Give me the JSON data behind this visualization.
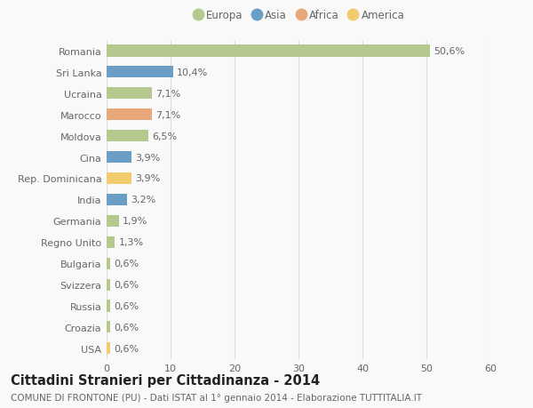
{
  "countries": [
    "Romania",
    "Sri Lanka",
    "Ucraina",
    "Marocco",
    "Moldova",
    "Cina",
    "Rep. Dominicana",
    "India",
    "Germania",
    "Regno Unito",
    "Bulgaria",
    "Svizzera",
    "Russia",
    "Croazia",
    "USA"
  ],
  "values": [
    50.6,
    10.4,
    7.1,
    7.1,
    6.5,
    3.9,
    3.9,
    3.2,
    1.9,
    1.3,
    0.6,
    0.6,
    0.6,
    0.6,
    0.6
  ],
  "labels": [
    "50,6%",
    "10,4%",
    "7,1%",
    "7,1%",
    "6,5%",
    "3,9%",
    "3,9%",
    "3,2%",
    "1,9%",
    "1,3%",
    "0,6%",
    "0,6%",
    "0,6%",
    "0,6%",
    "0,6%"
  ],
  "continents": [
    "Europa",
    "Asia",
    "Europa",
    "Africa",
    "Europa",
    "Asia",
    "America",
    "Asia",
    "Europa",
    "Europa",
    "Europa",
    "Europa",
    "Europa",
    "Europa",
    "America"
  ],
  "continent_colors": {
    "Europa": "#b5c98e",
    "Asia": "#6b9ec4",
    "Africa": "#e8a87c",
    "America": "#f0cc6e"
  },
  "legend_order": [
    "Europa",
    "Asia",
    "Africa",
    "America"
  ],
  "title": "Cittadini Stranieri per Cittadinanza - 2014",
  "subtitle": "COMUNE DI FRONTONE (PU) - Dati ISTAT al 1° gennaio 2014 - Elaborazione TUTTITALIA.IT",
  "xlim": [
    0,
    60
  ],
  "xticks": [
    0,
    10,
    20,
    30,
    40,
    50,
    60
  ],
  "background_color": "#f9f9f9",
  "grid_color": "#dddddd",
  "bar_height": 0.55,
  "label_fontsize": 8,
  "tick_fontsize": 8,
  "title_fontsize": 10.5,
  "subtitle_fontsize": 7.5,
  "text_color": "#666666",
  "title_color": "#222222"
}
